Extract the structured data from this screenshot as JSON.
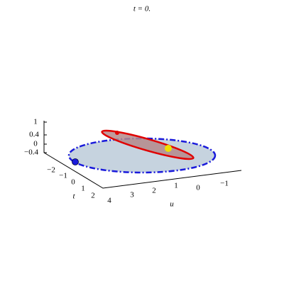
{
  "title": "t = 0.",
  "axes": {
    "z": {
      "ticks": [
        "1",
        "0.4",
        "0",
        "−0.4"
      ]
    },
    "t": {
      "label": "t",
      "ticks": [
        "−2",
        "−1",
        "0",
        "1",
        "2"
      ]
    },
    "u": {
      "label": "u",
      "ticks": [
        "4",
        "3",
        "2",
        "1",
        "0",
        "−1"
      ]
    }
  }
}
